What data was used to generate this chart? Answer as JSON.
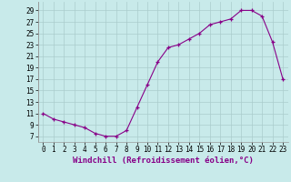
{
  "x": [
    0,
    1,
    2,
    3,
    4,
    5,
    6,
    7,
    8,
    9,
    10,
    11,
    12,
    13,
    14,
    15,
    16,
    17,
    18,
    19,
    20,
    21,
    22,
    23
  ],
  "y": [
    11,
    10,
    9.5,
    9,
    8.5,
    7.5,
    7,
    7,
    8,
    12,
    16,
    20,
    22.5,
    23,
    24,
    25,
    26.5,
    27,
    27.5,
    29,
    29,
    28,
    23.5,
    17
  ],
  "line_color": "#880088",
  "marker_color": "#880088",
  "bg_color": "#c8eaea",
  "grid_color": "#aacccc",
  "xlabel": "Windchill (Refroidissement éolien,°C)",
  "yticks": [
    7,
    9,
    11,
    13,
    15,
    17,
    19,
    21,
    23,
    25,
    27,
    29
  ],
  "xticks": [
    0,
    1,
    2,
    3,
    4,
    5,
    6,
    7,
    8,
    9,
    10,
    11,
    12,
    13,
    14,
    15,
    16,
    17,
    18,
    19,
    20,
    21,
    22,
    23
  ],
  "ylim": [
    6.0,
    30.5
  ],
  "xlim": [
    -0.5,
    23.5
  ],
  "xlabel_fontsize": 6.5,
  "tick_fontsize": 5.5
}
